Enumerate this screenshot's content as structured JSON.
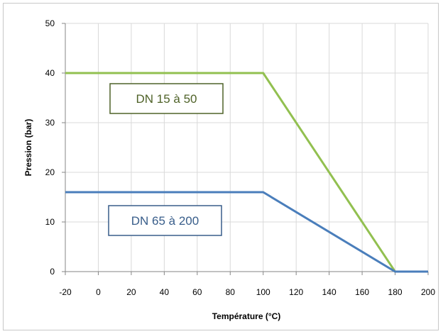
{
  "chart_data": {
    "type": "line",
    "xlabel": "Température (°C)",
    "ylabel": "Pression (bar)",
    "xlim": [
      -20,
      200
    ],
    "ylim": [
      0,
      50
    ],
    "x_ticks": [
      "-20",
      "0",
      "20",
      "40",
      "60",
      "80",
      "100",
      "120",
      "140",
      "160",
      "180",
      "200"
    ],
    "y_ticks": [
      "0",
      "10",
      "20",
      "30",
      "40",
      "50"
    ],
    "grid": true,
    "series": [
      {
        "name": "DN 15 à 50",
        "color": "#92c050",
        "points": [
          {
            "x": -20,
            "y": 40
          },
          {
            "x": 100,
            "y": 40
          },
          {
            "x": 180,
            "y": 0
          },
          {
            "x": 200,
            "y": 0
          }
        ]
      },
      {
        "name": "DN 65 à 200",
        "color": "#4a7ebb",
        "points": [
          {
            "x": -20,
            "y": 16
          },
          {
            "x": 100,
            "y": 16
          },
          {
            "x": 180,
            "y": 0
          },
          {
            "x": 200,
            "y": 0
          }
        ]
      }
    ],
    "annotations": [
      {
        "text": "DN 15 à 50",
        "series": 0,
        "border_color": "#4f6228",
        "text_color": "#4f6228"
      },
      {
        "text": "DN 65 à 200",
        "series": 1,
        "border_color": "#385d8a",
        "text_color": "#385d8a"
      }
    ]
  }
}
